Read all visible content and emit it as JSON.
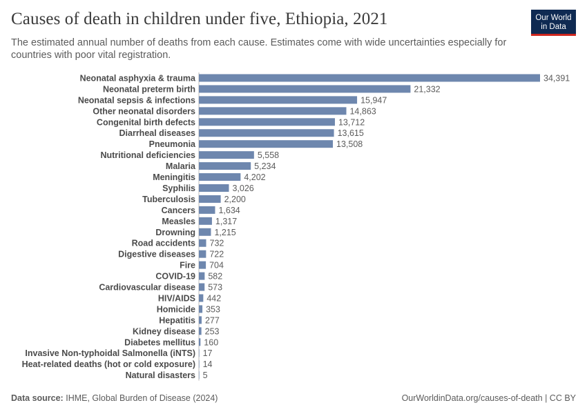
{
  "header": {
    "title": "Causes of death in children under five, Ethiopia, 2021",
    "subtitle": "The estimated annual number of deaths from each cause. Estimates come with wide uncertainties especially for countries with poor vital registration.",
    "logo_line1": "Our World",
    "logo_line2": "in Data"
  },
  "footer": {
    "source_label": "Data source:",
    "source_text": "IHME, Global Burden of Disease (2024)",
    "url_text": "OurWorldinData.org/causes-of-death | CC BY"
  },
  "colors": {
    "bar": "#6e87ae",
    "logo_bg": "#0f2a52",
    "logo_accent": "#ce261e"
  },
  "chart_data": {
    "type": "bar",
    "orientation": "horizontal",
    "title": "Causes of death in children under five, Ethiopia, 2021",
    "categories": [
      "Neonatal asphyxia & trauma",
      "Neonatal preterm birth",
      "Neonatal sepsis & infections",
      "Other neonatal disorders",
      "Congenital birth defects",
      "Diarrheal diseases",
      "Pneumonia",
      "Nutritional deficiencies",
      "Malaria",
      "Meningitis",
      "Syphilis",
      "Tuberculosis",
      "Cancers",
      "Measles",
      "Drowning",
      "Road accidents",
      "Digestive diseases",
      "Fire",
      "COVID-19",
      "Cardiovascular disease",
      "HIV/AIDS",
      "Homicide",
      "Hepatitis",
      "Kidney disease",
      "Diabetes mellitus",
      "Invasive Non-typhoidal Salmonella (iNTS)",
      "Heat-related deaths (hot or cold exposure)",
      "Natural disasters"
    ],
    "values": [
      34391,
      21332,
      15947,
      14863,
      13712,
      13615,
      13508,
      5558,
      5234,
      4202,
      3026,
      2200,
      1634,
      1317,
      1215,
      732,
      722,
      704,
      582,
      573,
      442,
      353,
      277,
      253,
      160,
      17,
      14,
      5
    ],
    "value_labels": [
      "34,391",
      "21,332",
      "15,947",
      "14,863",
      "13,712",
      "13,615",
      "13,508",
      "5,558",
      "5,234",
      "4,202",
      "3,026",
      "2,200",
      "1,634",
      "1,317",
      "1,215",
      "732",
      "722",
      "704",
      "582",
      "573",
      "442",
      "353",
      "277",
      "253",
      "160",
      "17",
      "14",
      "5"
    ],
    "xlim": [
      0,
      34391
    ],
    "grid": false,
    "legend": "none"
  }
}
